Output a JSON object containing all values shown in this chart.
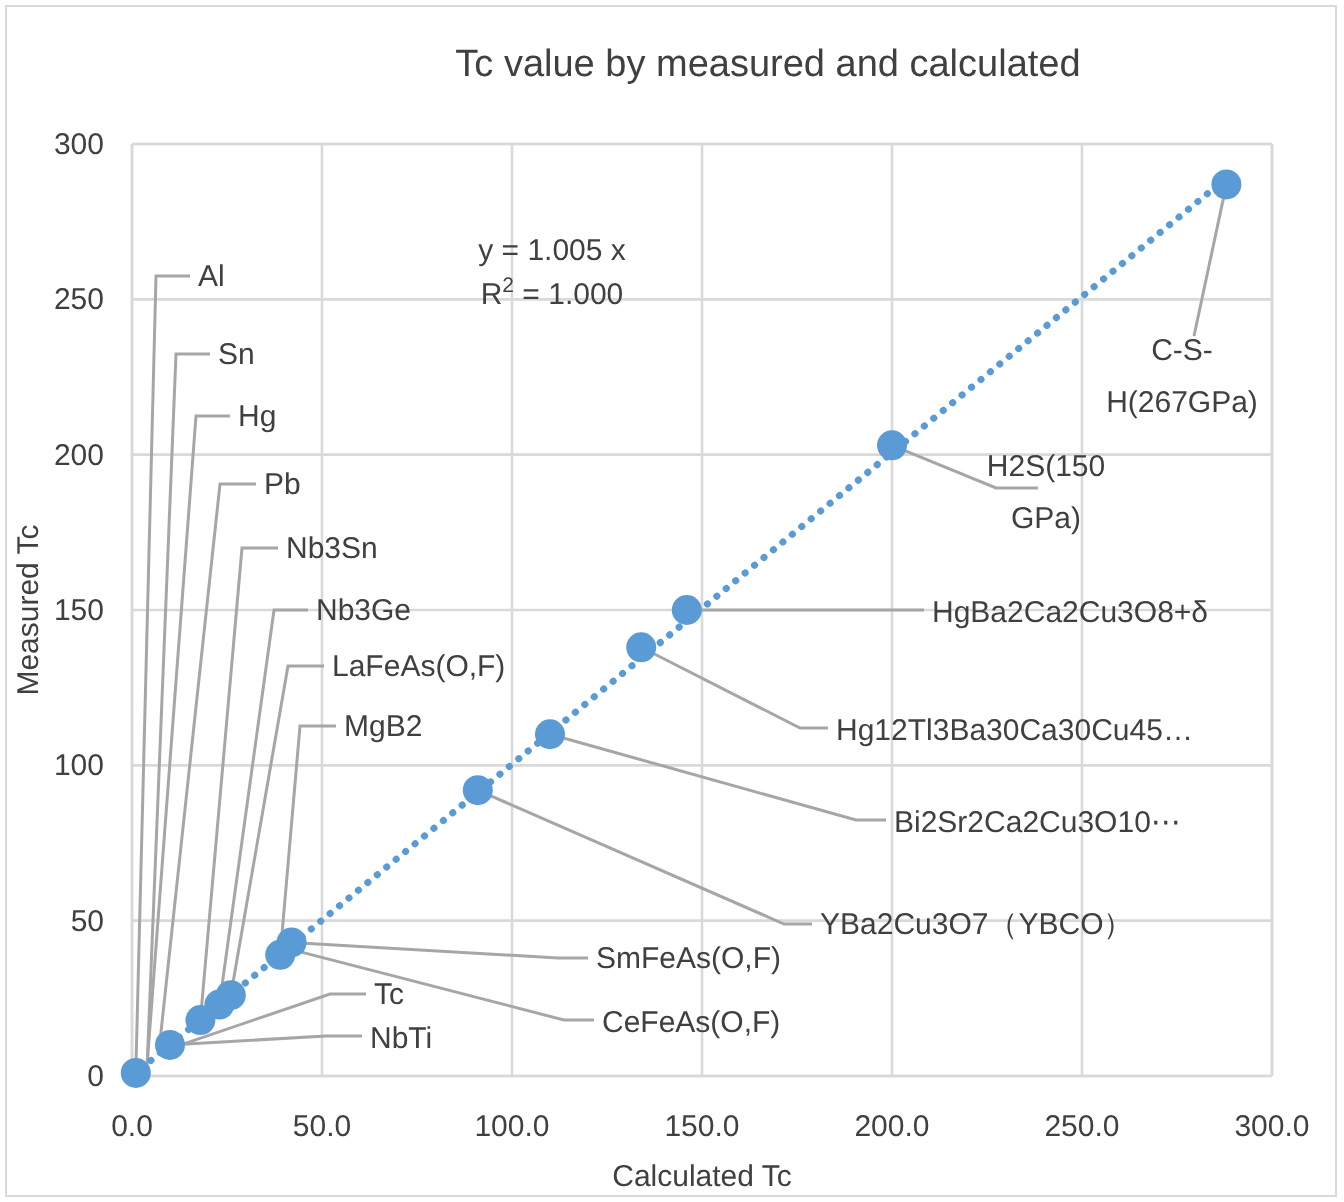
{
  "chart_data": {
    "type": "scatter",
    "title": "Tc value by measured and calculated",
    "xlabel": "Calculated Tc",
    "ylabel": "Measured Tc",
    "xlim": [
      0,
      300
    ],
    "ylim": [
      0,
      300
    ],
    "xticks": [
      {
        "value": 0,
        "label": "0.0"
      },
      {
        "value": 50,
        "label": "50.0"
      },
      {
        "value": 100,
        "label": "100.0"
      },
      {
        "value": 150,
        "label": "150.0"
      },
      {
        "value": 200,
        "label": "200.0"
      },
      {
        "value": 250,
        "label": "250.0"
      },
      {
        "value": 300,
        "label": "300.0"
      }
    ],
    "yticks": [
      0,
      50,
      100,
      150,
      200,
      250,
      300
    ],
    "grid": true,
    "marker": "circle",
    "series": [
      {
        "color": "#5b9bd5",
        "x": [
          1,
          null,
          null,
          null,
          18,
          23,
          26,
          39,
          null,
          10,
          42,
          null,
          91,
          110,
          134,
          146,
          200,
          288
        ],
        "values": [
          1,
          null,
          null,
          null,
          18,
          23,
          26,
          39,
          null,
          10,
          43,
          null,
          92,
          110,
          138,
          150,
          203,
          287
        ]
      },
      {
        "type": "line",
        "line_style": "dotted",
        "marker": "none",
        "color": "#5b9bd5",
        "x": [
          0,
          288
        ],
        "values": [
          0,
          289
        ]
      }
    ],
    "annotations": [
      {
        "text": "Al",
        "x": 1,
        "y": 1
      },
      {
        "text": "Sn",
        "x": 4,
        "y": 4
      },
      {
        "text": "Hg",
        "x": 4,
        "y": 4
      },
      {
        "text": "Pb",
        "x": 7,
        "y": 7
      },
      {
        "text": "Nb3Sn",
        "x": 18,
        "y": 18
      },
      {
        "text": "Nb3Ge",
        "x": 23,
        "y": 23
      },
      {
        "text": "LaFeAs(O,F)",
        "x": 26,
        "y": 26
      },
      {
        "text": "MgB2",
        "x": 39,
        "y": 39
      },
      {
        "text": "Tc",
        "x": 8,
        "y": 8
      },
      {
        "text": "NbTi",
        "x": 10,
        "y": 10
      },
      {
        "text": "SmFeAs(O,F)",
        "x": 42,
        "y": 43
      },
      {
        "text": "CeFeAs(O,F)",
        "x": 41,
        "y": 41
      },
      {
        "text": "YBa2Cu3O7（YBCO）",
        "x": 91,
        "y": 92
      },
      {
        "text": "Bi2Sr2Ca2Cu3O10⋯",
        "x": 110,
        "y": 110
      },
      {
        "text": "Hg12Tl3Ba30Ca30Cu45…",
        "x": 134,
        "y": 138
      },
      {
        "text": "HgBa2Ca2Cu3O8+δ",
        "x": 146,
        "y": 150
      },
      {
        "text": "H2S(150 GPa)",
        "x": 200,
        "y": 203
      },
      {
        "text": "C-S-H(267GPa)",
        "x": 288,
        "y": 287
      },
      "y = 1.005 x",
      "R$^{2}$ = 1.000"
    ]
  }
}
